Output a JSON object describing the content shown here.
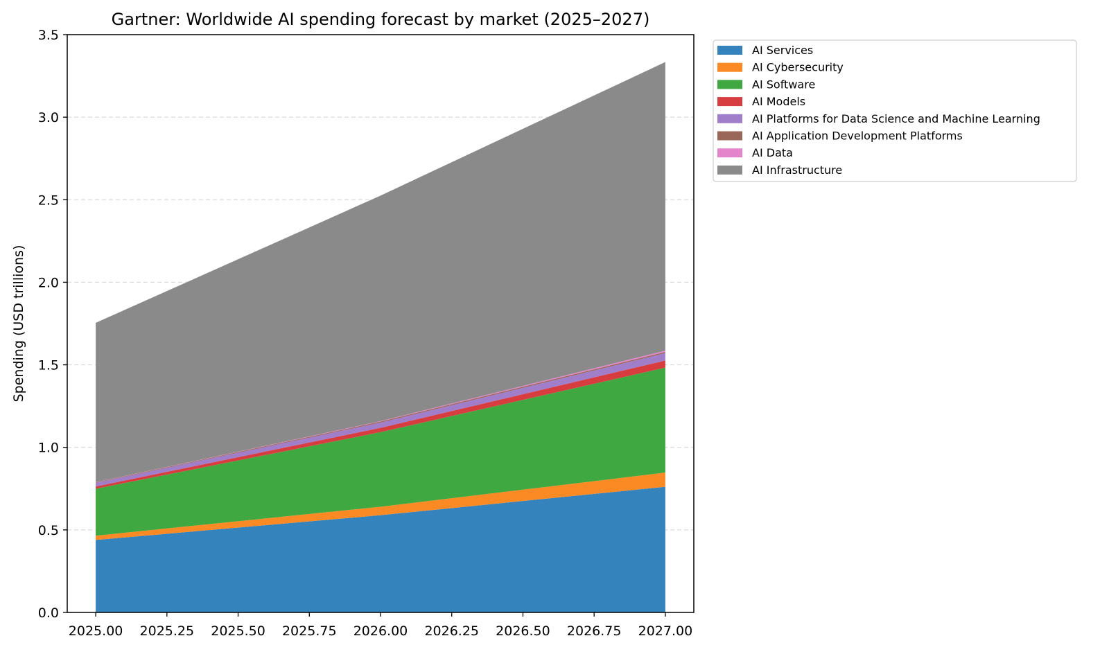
{
  "chart_data": {
    "type": "area",
    "stacked": true,
    "title": "Gartner: Worldwide AI spending forecast by market (2025–2027)",
    "xlabel": "",
    "ylabel": "Spending (USD trillions)",
    "x": [
      2025,
      2026,
      2027
    ],
    "xlim": [
      2024.9,
      2027.1
    ],
    "ylim": [
      0,
      3.5
    ],
    "xticks": [
      2025.0,
      2025.25,
      2025.5,
      2025.75,
      2026.0,
      2026.25,
      2026.5,
      2026.75,
      2027.0
    ],
    "xtick_labels": [
      "2025.00",
      "2025.25",
      "2025.50",
      "2025.75",
      "2026.00",
      "2026.25",
      "2026.50",
      "2026.75",
      "2027.00"
    ],
    "yticks": [
      0,
      0.5,
      1.0,
      1.5,
      2.0,
      2.5,
      3.0,
      3.5
    ],
    "ytick_labels": [
      "0.0",
      "0.5",
      "1.0",
      "1.5",
      "2.0",
      "2.5",
      "3.0",
      "3.5"
    ],
    "grid": "y-dashed",
    "legend_position": "outside-top-right",
    "series": [
      {
        "name": "AI Services",
        "color": "#3583bc",
        "values": [
          0.439,
          0.589,
          0.761
        ]
      },
      {
        "name": "AI Cybersecurity",
        "color": "#fb8a25",
        "values": [
          0.026,
          0.051,
          0.086
        ]
      },
      {
        "name": "AI Software",
        "color": "#40a840",
        "values": [
          0.284,
          0.452,
          0.636
        ]
      },
      {
        "name": "AI Models",
        "color": "#d73d3e",
        "values": [
          0.014,
          0.026,
          0.043
        ]
      },
      {
        "name": "AI Platforms for Data Science and Machine Learning",
        "color": "#a07ec9",
        "values": [
          0.022,
          0.032,
          0.045
        ]
      },
      {
        "name": "AI Application Development Platforms",
        "color": "#9a665a",
        "values": [
          0.003,
          0.006,
          0.007
        ]
      },
      {
        "name": "AI Data",
        "color": "#e484cb",
        "values": [
          0.001,
          0.003,
          0.008
        ]
      },
      {
        "name": "AI Infrastructure",
        "color": "#8a8a8a",
        "values": [
          0.965,
          1.366,
          1.748
        ]
      }
    ]
  }
}
